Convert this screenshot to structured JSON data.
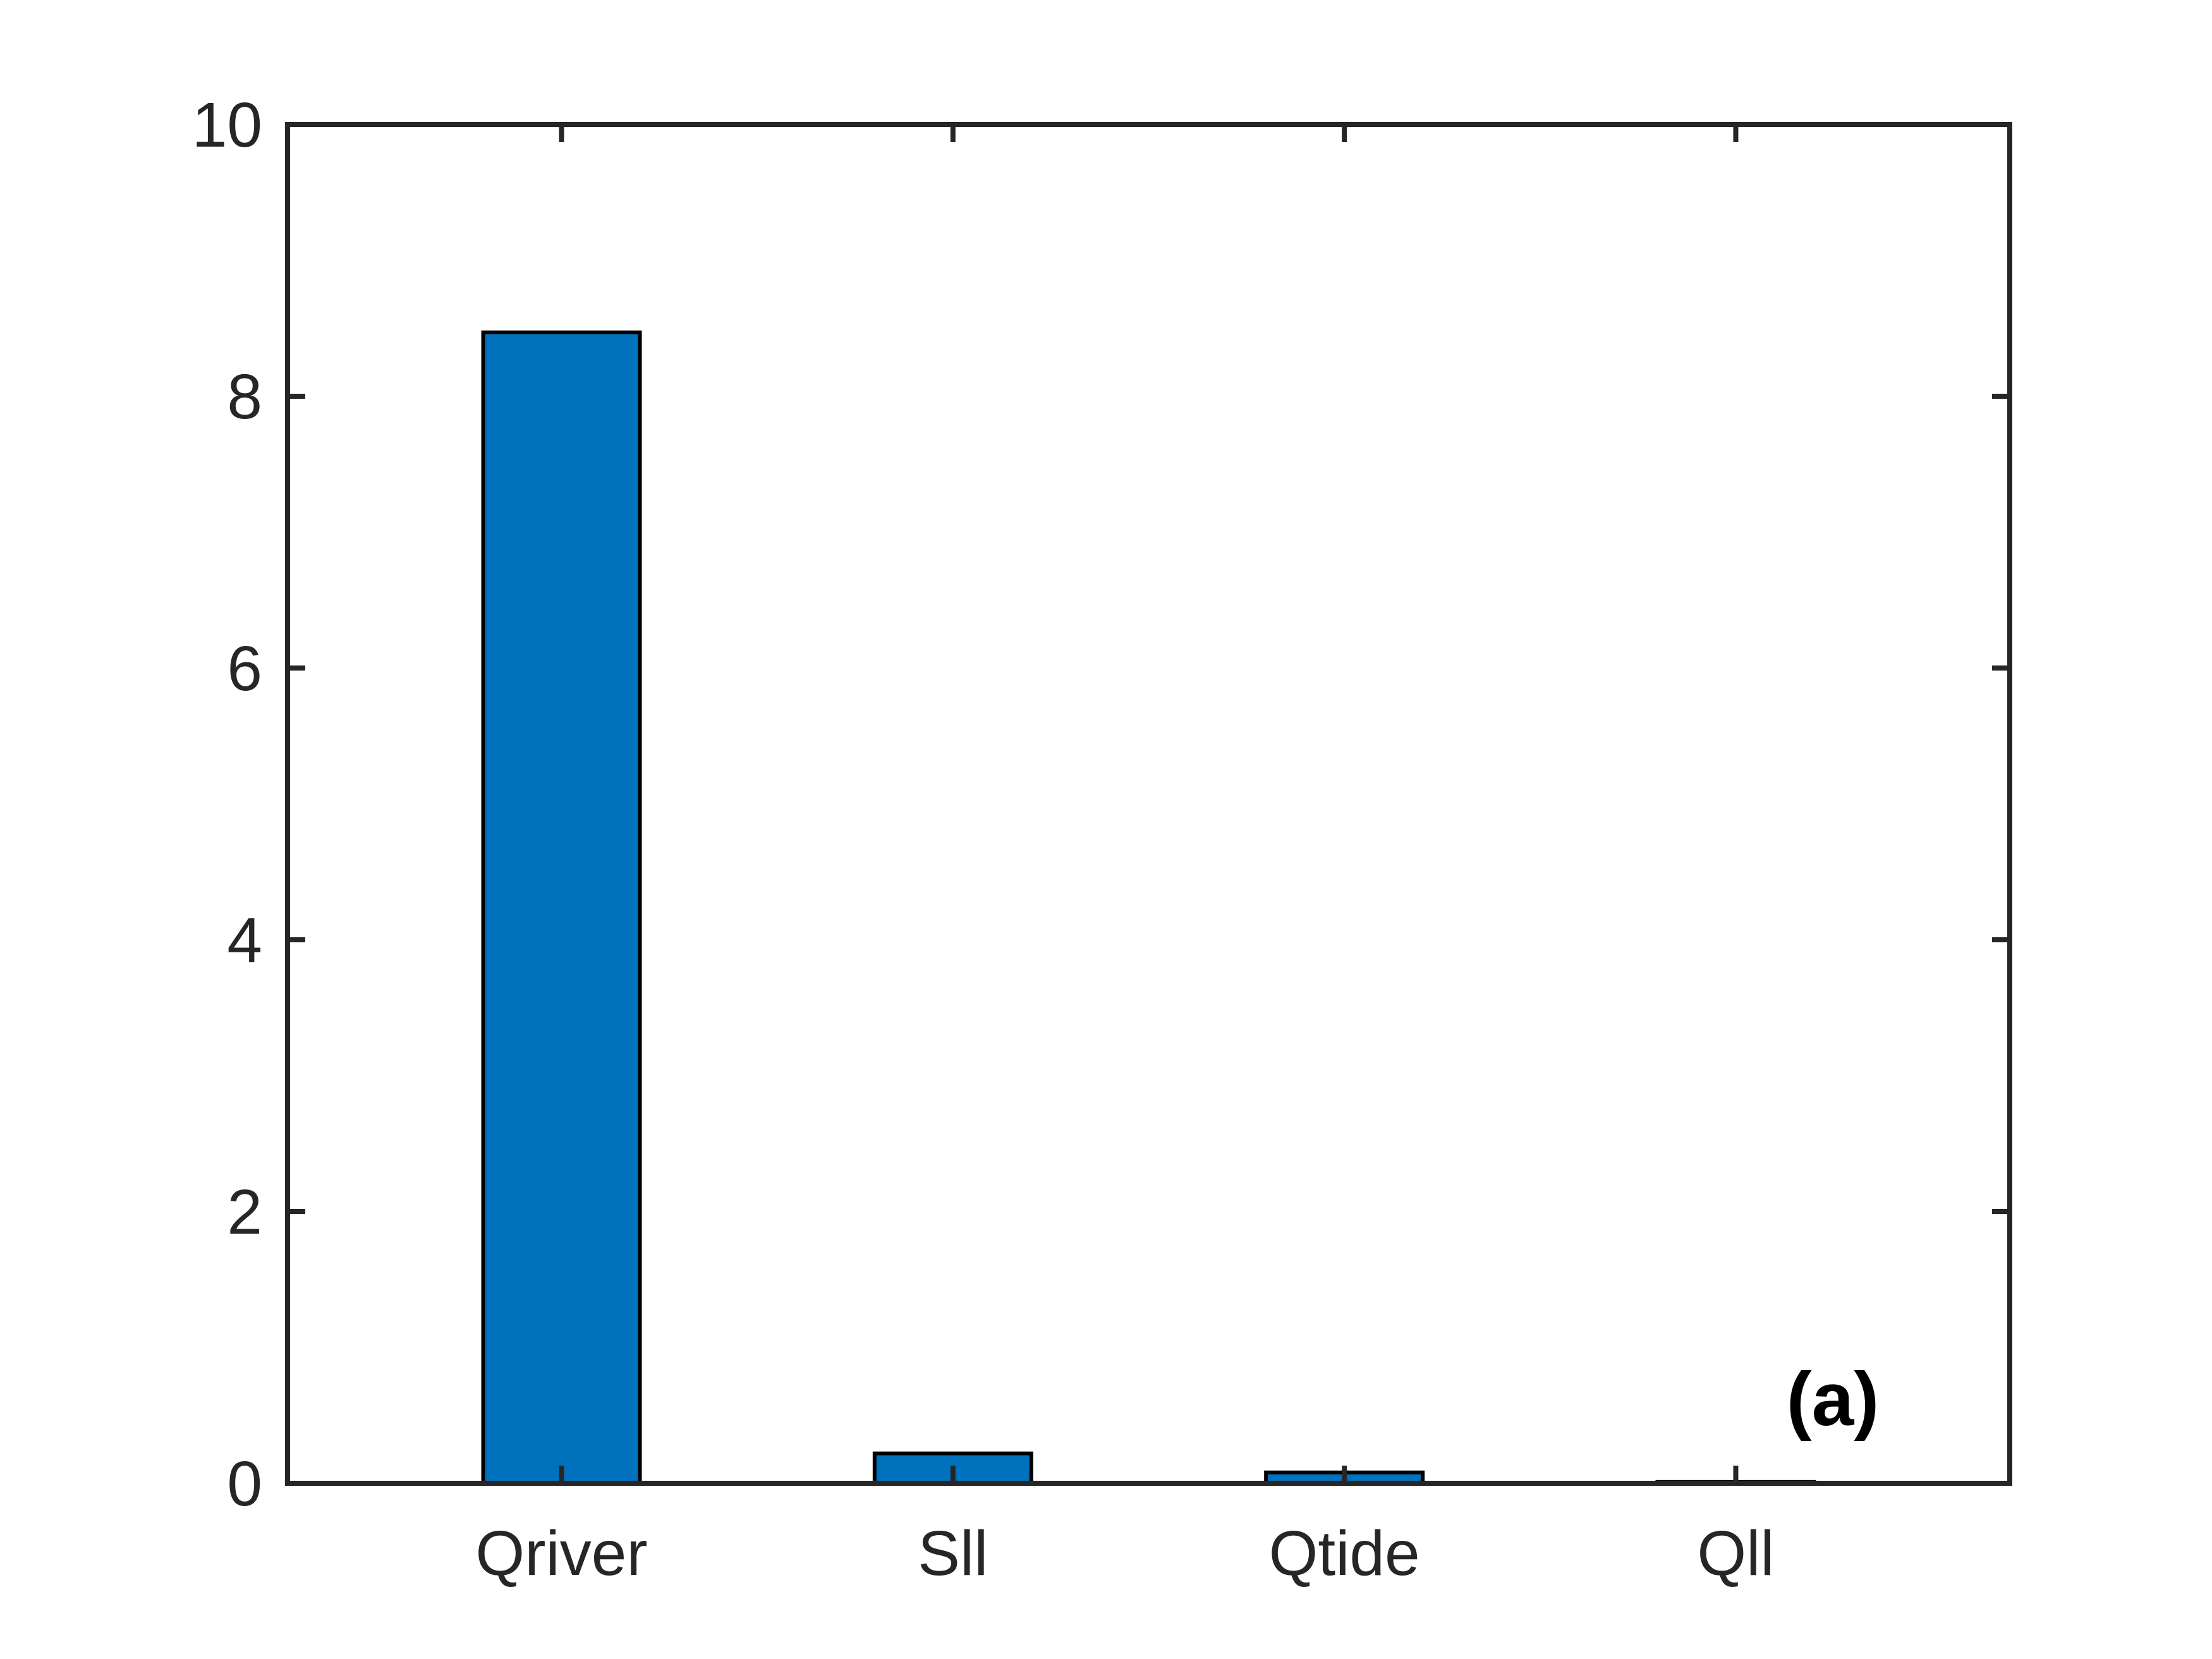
{
  "chart_data": {
    "type": "bar",
    "categories": [
      "Qriver",
      "Sll",
      "Qtide",
      "Qll"
    ],
    "values": [
      8.47,
      0.22,
      0.08,
      0.01
    ],
    "ylim": [
      0,
      10
    ],
    "yticks": [
      0,
      2,
      4,
      6,
      8,
      10
    ],
    "ytick_labels": [
      "0",
      "2",
      "4",
      "6",
      "8",
      "10"
    ],
    "annotation": "(a)",
    "bar_color": "#0072BD",
    "axis_color": "#262626",
    "grid": false
  }
}
